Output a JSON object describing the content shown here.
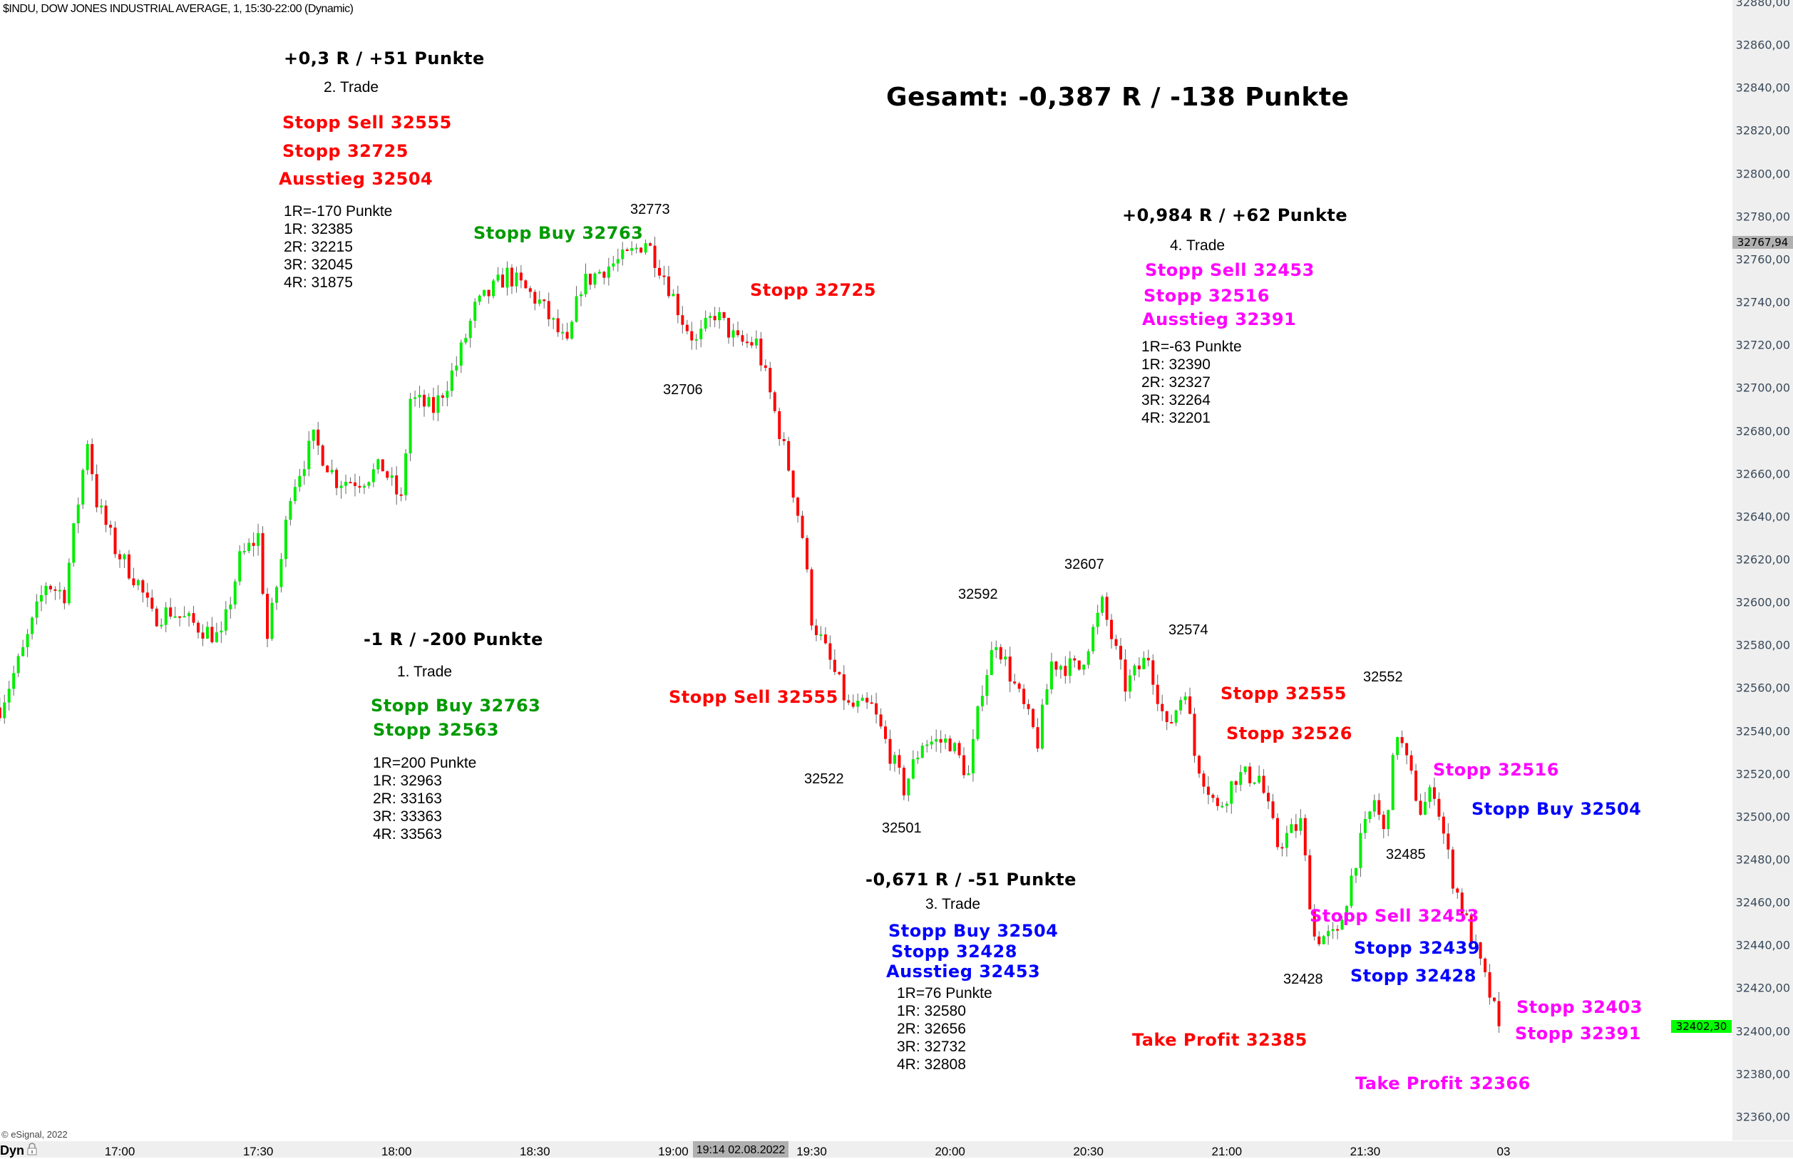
{
  "header": {
    "title": "$INDU, DOW JONES INDUSTRIAL AVERAGE, 1, 15:30-22:00 (Dynamic)"
  },
  "total": "Gesamt: -0,387 R / -138 Punkte",
  "trade1": {
    "result": "-1 R / -200 Punkte",
    "name": "1. Trade",
    "entry": "Stopp Buy 32763",
    "stop": "Stopp 32563",
    "r": "1R=200 Punkte",
    "r1": "1R: 32963",
    "r2": "2R: 33163",
    "r3": "3R: 33363",
    "r4": "4R: 33563"
  },
  "trade2": {
    "result": "+0,3 R / +51 Punkte",
    "name": "2. Trade",
    "entry": "Stopp Sell 32555",
    "stop": "Stopp 32725",
    "exit": "Ausstieg 32504",
    "r": "1R=-170 Punkte",
    "r1": "1R: 32385",
    "r2": "2R: 32215",
    "r3": "3R: 32045",
    "r4": "4R: 31875"
  },
  "trade3": {
    "result": "-0,671 R / -51 Punkte",
    "name": "3. Trade",
    "entry": "Stopp Buy 32504",
    "stop": "Stopp 32428",
    "exit": "Ausstieg 32453",
    "r": "1R=76 Punkte",
    "r1": "1R: 32580",
    "r2": "2R: 32656",
    "r3": "3R: 32732",
    "r4": "4R: 32808"
  },
  "trade4": {
    "result": "+0,984 R / +62 Punkte",
    "name": "4. Trade",
    "entry": "Stopp Sell 32453",
    "stop": "Stopp 32516",
    "exit": "Ausstieg 32391",
    "r": "1R=-63 Punkte",
    "r1": "1R: 32390",
    "r2": "2R: 32327",
    "r3": "3R: 32264",
    "r4": "4R: 32201"
  },
  "chart_labels": {
    "stopp_buy_32763": "Stopp Buy 32763",
    "stopp_32725": "Stopp 32725",
    "stopp_sell_32555": "Stopp Sell 32555",
    "stopp_32555": "Stopp 32555",
    "stopp_32526": "Stopp 32526",
    "stopp_32516": "Stopp 32516",
    "stopp_buy_32504": "Stopp Buy 32504",
    "stopp_sell_32453": "Stopp Sell 32453",
    "stopp_32439": "Stopp 32439",
    "stopp_32428": "Stopp 32428",
    "stopp_32403": "Stopp 32403",
    "stopp_32391": "Stopp 32391",
    "tp_32385": "Take Profit 32385",
    "tp_32366": "Take Profit 32366",
    "p32773": "32773",
    "p32706": "32706",
    "p32592": "32592",
    "p32607": "32607",
    "p32574": "32574",
    "p32522": "32522",
    "p32501": "32501",
    "p32552": "32552",
    "p32485": "32485",
    "p32428": "32428"
  },
  "colors": {
    "up": "#00ee00",
    "down": "#ff0000",
    "trade_red": "#ff0000",
    "trade_green": "#009a00",
    "trade_blue": "#0000ff",
    "trade_magenta": "#ff00ff",
    "last_price_bg": "#00ff00",
    "cursor_price_bg": "#b0b0b0"
  },
  "footer": {
    "copyright": "© eSignal, 2022",
    "mode": "Dyn",
    "cursor_time": "19:14 02.08.2022"
  },
  "chart_data": {
    "type": "candlestick",
    "title": "$INDU, DOW JONES INDUSTRIAL AVERAGE, 1, 15:30-22:00 (Dynamic)",
    "interval": "1 min",
    "x_ticks": [
      "17:00",
      "17:30",
      "18:00",
      "18:30",
      "19:00",
      "19:30",
      "20:00",
      "20:30",
      "21:00",
      "21:30",
      "03"
    ],
    "y_ticks": [
      "32880,00",
      "32860,00",
      "32840,00",
      "32820,00",
      "32800,00",
      "32780,00",
      "32760,00",
      "32740,00",
      "32720,00",
      "32700,00",
      "32680,00",
      "32660,00",
      "32640,00",
      "32620,00",
      "32600,00",
      "32580,00",
      "32560,00",
      "32540,00",
      "32520,00",
      "32500,00",
      "32480,00",
      "32460,00",
      "32440,00",
      "32420,00",
      "32400,00",
      "32380,00",
      "32360,00"
    ],
    "ylim": [
      32349,
      32881
    ],
    "xlim": [
      "16:34",
      "22:00"
    ],
    "last_price": "32402,30",
    "cursor_price": "32767,94",
    "approx_close_path": {
      "times": [
        "16:34",
        "16:39",
        "16:44",
        "16:48",
        "16:53",
        "16:55",
        "16:59",
        "17:04",
        "17:07",
        "17:11",
        "17:15",
        "17:22",
        "17:26",
        "17:30",
        "17:32",
        "17:35",
        "17:37",
        "17:42",
        "17:47",
        "17:52",
        "17:57",
        "18:01",
        "18:03",
        "18:08",
        "18:13",
        "18:17",
        "18:24",
        "18:31",
        "18:37",
        "18:40",
        "18:45",
        "18:50",
        "18:54",
        "18:58",
        "19:02",
        "19:05",
        "19:09",
        "19:14",
        "19:18",
        "19:21",
        "19:25",
        "19:28",
        "19:30",
        "19:34",
        "19:38",
        "19:43",
        "19:46",
        "19:50",
        "19:54",
        "20:00",
        "20:04",
        "20:07",
        "20:10",
        "20:14",
        "20:19",
        "20:22",
        "20:28",
        "20:33",
        "20:38",
        "20:43",
        "20:47",
        "20:51",
        "20:53",
        "20:58",
        "21:02",
        "21:07",
        "21:11",
        "21:16",
        "21:19",
        "21:24",
        "21:28",
        "21:32",
        "21:34",
        "21:37",
        "21:42",
        "21:45",
        "21:49",
        "21:53",
        "21:57",
        "21:59"
      ],
      "close": [
        32551,
        32577,
        32609,
        32604,
        32676,
        32647,
        32625,
        32609,
        32593,
        32596,
        32591,
        32583,
        32620,
        32631,
        32583,
        32620,
        32652,
        32676,
        32657,
        32657,
        32663,
        32647,
        32695,
        32690,
        32711,
        32737,
        32753,
        32740,
        32719,
        32748,
        32756,
        32761,
        32769,
        32753,
        32732,
        32721,
        32735,
        32721,
        32721,
        32697,
        32663,
        32631,
        32593,
        32572,
        32551,
        32551,
        32535,
        32513,
        32535,
        32535,
        32519,
        32561,
        32583,
        32561,
        32535,
        32572,
        32569,
        32599,
        32561,
        32575,
        32540,
        32561,
        32529,
        32503,
        32519,
        32519,
        32487,
        32497,
        32444,
        32444,
        32481,
        32508,
        32492,
        32540,
        32503,
        32513,
        32471,
        32444,
        32417,
        32402
      ]
    }
  }
}
